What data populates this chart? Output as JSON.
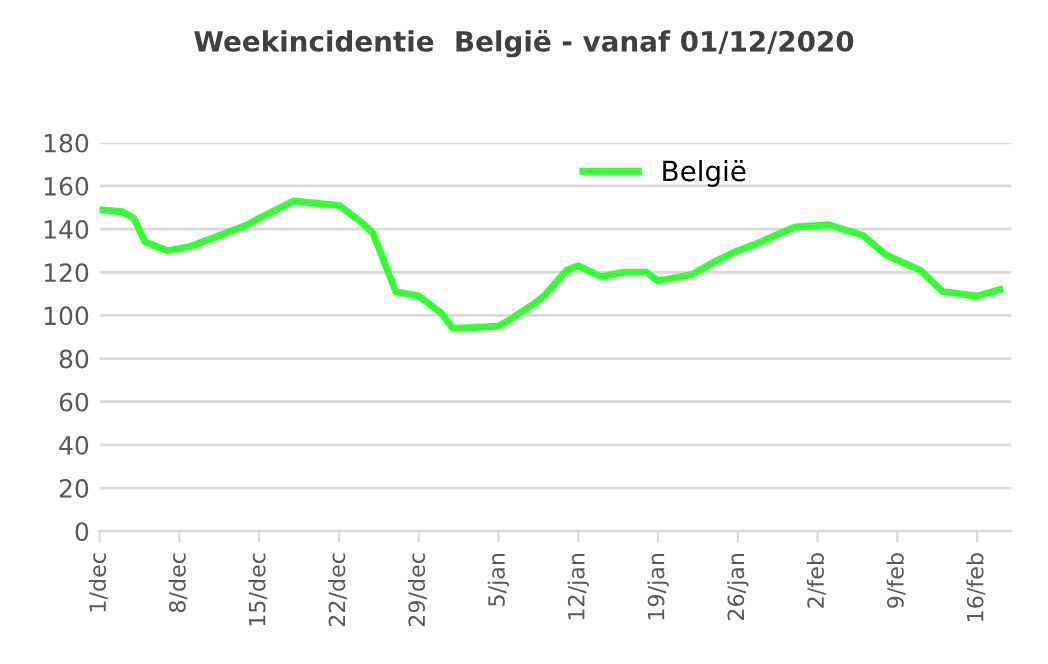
{
  "chart_data": {
    "type": "line",
    "title": "Weekincidentie  België - vanaf 01/12/2020",
    "x": [
      "2020-12-01",
      "2020-12-03",
      "2020-12-04",
      "2020-12-05",
      "2020-12-07",
      "2020-12-09",
      "2020-12-11",
      "2020-12-14",
      "2020-12-15",
      "2020-12-18",
      "2020-12-20",
      "2020-12-22",
      "2020-12-24",
      "2020-12-25",
      "2020-12-27",
      "2020-12-29",
      "2020-12-31",
      "2021-01-01",
      "2021-01-05",
      "2021-01-06",
      "2021-01-08",
      "2021-01-09",
      "2021-01-11",
      "2021-01-12",
      "2021-01-14",
      "2021-01-16",
      "2021-01-18",
      "2021-01-19",
      "2021-01-22",
      "2021-01-24",
      "2021-01-26",
      "2021-01-28",
      "2021-01-31",
      "2021-02-03",
      "2021-02-06",
      "2021-02-08",
      "2021-02-11",
      "2021-02-13",
      "2021-02-16",
      "2021-02-18"
    ],
    "series": [
      {
        "name": "België",
        "color": "#33ff33",
        "values": [
          149,
          148,
          145,
          134,
          130,
          132,
          136,
          142,
          145,
          153,
          152,
          151,
          143,
          138,
          111,
          109,
          101,
          94,
          95,
          98,
          105,
          109,
          121,
          123,
          118,
          120,
          120,
          116,
          119,
          125,
          130,
          134,
          141,
          142,
          137,
          128,
          121,
          111,
          109,
          112
        ]
      }
    ],
    "xlim": [
      "2020-12-01",
      "2021-02-19"
    ],
    "xticks": [
      {
        "value": "2020-12-01",
        "label": "1/dec"
      },
      {
        "value": "2020-12-08",
        "label": "8/dec"
      },
      {
        "value": "2020-12-15",
        "label": "15/dec"
      },
      {
        "value": "2020-12-22",
        "label": "22/dec"
      },
      {
        "value": "2020-12-29",
        "label": "29/dec"
      },
      {
        "value": "2021-01-05",
        "label": "5/jan"
      },
      {
        "value": "2021-01-12",
        "label": "12/jan"
      },
      {
        "value": "2021-01-19",
        "label": "19/jan"
      },
      {
        "value": "2021-01-26",
        "label": "26/jan"
      },
      {
        "value": "2021-02-02",
        "label": "2/feb"
      },
      {
        "value": "2021-02-09",
        "label": "9/feb"
      },
      {
        "value": "2021-02-16",
        "label": "16/feb"
      }
    ],
    "ylim": [
      0,
      180
    ],
    "yticks": [
      0,
      20,
      40,
      60,
      80,
      100,
      120,
      140,
      160,
      180
    ],
    "grid": "y",
    "legend": "top",
    "marker": "none",
    "line_style": "solid"
  }
}
